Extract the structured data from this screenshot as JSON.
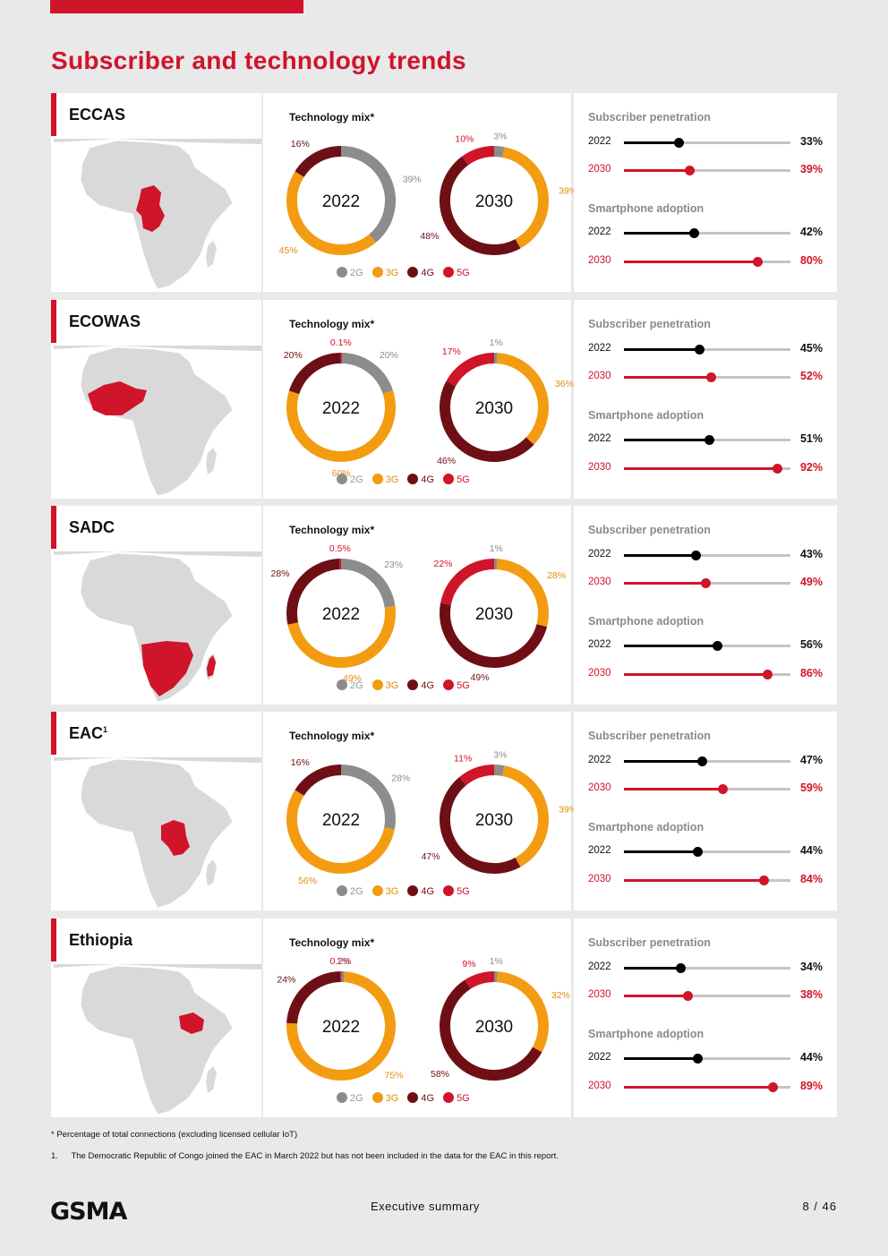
{
  "page": {
    "title": "Subscriber and technology trends",
    "legend_labels": [
      "2G",
      "3G",
      "4G",
      "5G"
    ],
    "colors": {
      "2G": "#8c8c8c",
      "3G": "#f39c12",
      "4G": "#6e0f15",
      "5G": "#d0142a",
      "accent": "#d0142a"
    },
    "mix_title": "Technology mix*",
    "sub_title": "Subscriber penetration",
    "smart_title": "Smartphone adoption",
    "footnote_star": "* Percentage of total connections (excluding licensed cellular IoT)",
    "footnote_1_num": "1.",
    "footnote_1": "The Democratic Republic of Congo joined the EAC in March 2022 but has not been included in the data for the EAC in this report.",
    "logo": "GSMA",
    "footer_section": "Executive summary",
    "page_number": "8 / 46"
  },
  "chart_data": [
    {
      "type": "pie",
      "region": "ECCAS",
      "region_sup": "",
      "donuts": [
        {
          "year": "2022",
          "slices": [
            {
              "name": "2G",
              "value": 39,
              "label": "39%"
            },
            {
              "name": "3G",
              "value": 45,
              "label": "45%"
            },
            {
              "name": "4G",
              "value": 16,
              "label": "16%"
            },
            {
              "name": "5G",
              "value": 0,
              "label": ""
            }
          ]
        },
        {
          "year": "2030",
          "slices": [
            {
              "name": "2G",
              "value": 3,
              "label": "3%"
            },
            {
              "name": "3G",
              "value": 39,
              "label": "39%"
            },
            {
              "name": "4G",
              "value": 48,
              "label": "48%"
            },
            {
              "name": "5G",
              "value": 10,
              "label": "10%"
            }
          ]
        }
      ],
      "subscriber_penetration": [
        {
          "year": "2022",
          "value": 33,
          "label": "33%"
        },
        {
          "year": "2030",
          "value": 39,
          "label": "39%"
        }
      ],
      "smartphone_adoption": [
        {
          "year": "2022",
          "value": 42,
          "label": "42%"
        },
        {
          "year": "2030",
          "value": 80,
          "label": "80%"
        }
      ]
    },
    {
      "type": "pie",
      "region": "ECOWAS",
      "region_sup": "",
      "donuts": [
        {
          "year": "2022",
          "slices": [
            {
              "name": "2G",
              "value": 20,
              "label": "20%"
            },
            {
              "name": "3G",
              "value": 60,
              "label": "60%"
            },
            {
              "name": "4G",
              "value": 20,
              "label": "20%"
            },
            {
              "name": "5G",
              "value": 0.1,
              "label": "0.1%"
            }
          ]
        },
        {
          "year": "2030",
          "slices": [
            {
              "name": "2G",
              "value": 1,
              "label": "1%"
            },
            {
              "name": "3G",
              "value": 36,
              "label": "36%"
            },
            {
              "name": "4G",
              "value": 46,
              "label": "46%"
            },
            {
              "name": "5G",
              "value": 17,
              "label": "17%"
            }
          ]
        }
      ],
      "subscriber_penetration": [
        {
          "year": "2022",
          "value": 45,
          "label": "45%"
        },
        {
          "year": "2030",
          "value": 52,
          "label": "52%"
        }
      ],
      "smartphone_adoption": [
        {
          "year": "2022",
          "value": 51,
          "label": "51%"
        },
        {
          "year": "2030",
          "value": 92,
          "label": "92%"
        }
      ]
    },
    {
      "type": "pie",
      "region": "SADC",
      "region_sup": "",
      "donuts": [
        {
          "year": "2022",
          "slices": [
            {
              "name": "2G",
              "value": 23,
              "label": "23%"
            },
            {
              "name": "3G",
              "value": 49,
              "label": "49%"
            },
            {
              "name": "4G",
              "value": 28,
              "label": "28%"
            },
            {
              "name": "5G",
              "value": 0.5,
              "label": "0.5%"
            }
          ]
        },
        {
          "year": "2030",
          "slices": [
            {
              "name": "2G",
              "value": 1,
              "label": "1%"
            },
            {
              "name": "3G",
              "value": 28,
              "label": "28%"
            },
            {
              "name": "4G",
              "value": 49,
              "label": "49%"
            },
            {
              "name": "5G",
              "value": 22,
              "label": "22%"
            }
          ]
        }
      ],
      "subscriber_penetration": [
        {
          "year": "2022",
          "value": 43,
          "label": "43%"
        },
        {
          "year": "2030",
          "value": 49,
          "label": "49%"
        }
      ],
      "smartphone_adoption": [
        {
          "year": "2022",
          "value": 56,
          "label": "56%"
        },
        {
          "year": "2030",
          "value": 86,
          "label": "86%"
        }
      ]
    },
    {
      "type": "pie",
      "region": "EAC",
      "region_sup": "1",
      "donuts": [
        {
          "year": "2022",
          "slices": [
            {
              "name": "2G",
              "value": 28,
              "label": "28%"
            },
            {
              "name": "3G",
              "value": 56,
              "label": "56%"
            },
            {
              "name": "4G",
              "value": 16,
              "label": "16%"
            },
            {
              "name": "5G",
              "value": 0,
              "label": ""
            }
          ]
        },
        {
          "year": "2030",
          "slices": [
            {
              "name": "2G",
              "value": 3,
              "label": "3%"
            },
            {
              "name": "3G",
              "value": 39,
              "label": "39%"
            },
            {
              "name": "4G",
              "value": 47,
              "label": "47%"
            },
            {
              "name": "5G",
              "value": 11,
              "label": "11%"
            }
          ]
        }
      ],
      "subscriber_penetration": [
        {
          "year": "2022",
          "value": 47,
          "label": "47%"
        },
        {
          "year": "2030",
          "value": 59,
          "label": "59%"
        }
      ],
      "smartphone_adoption": [
        {
          "year": "2022",
          "value": 44,
          "label": "44%"
        },
        {
          "year": "2030",
          "value": 84,
          "label": "84%"
        }
      ]
    },
    {
      "type": "pie",
      "region": "Ethiopia",
      "region_sup": "",
      "donuts": [
        {
          "year": "2022",
          "slices": [
            {
              "name": "2G",
              "value": 1,
              "label": "1%"
            },
            {
              "name": "3G",
              "value": 75,
              "label": "75%"
            },
            {
              "name": "4G",
              "value": 24,
              "label": "24%"
            },
            {
              "name": "5G",
              "value": 0.2,
              "label": "0.2%"
            }
          ]
        },
        {
          "year": "2030",
          "slices": [
            {
              "name": "2G",
              "value": 1,
              "label": "1%"
            },
            {
              "name": "3G",
              "value": 32,
              "label": "32%"
            },
            {
              "name": "4G",
              "value": 58,
              "label": "58%"
            },
            {
              "name": "5G",
              "value": 9,
              "label": "9%"
            }
          ]
        }
      ],
      "subscriber_penetration": [
        {
          "year": "2022",
          "value": 34,
          "label": "34%"
        },
        {
          "year": "2030",
          "value": 38,
          "label": "38%"
        }
      ],
      "smartphone_adoption": [
        {
          "year": "2022",
          "value": 44,
          "label": "44%"
        },
        {
          "year": "2030",
          "value": 89,
          "label": "89%"
        }
      ]
    }
  ]
}
